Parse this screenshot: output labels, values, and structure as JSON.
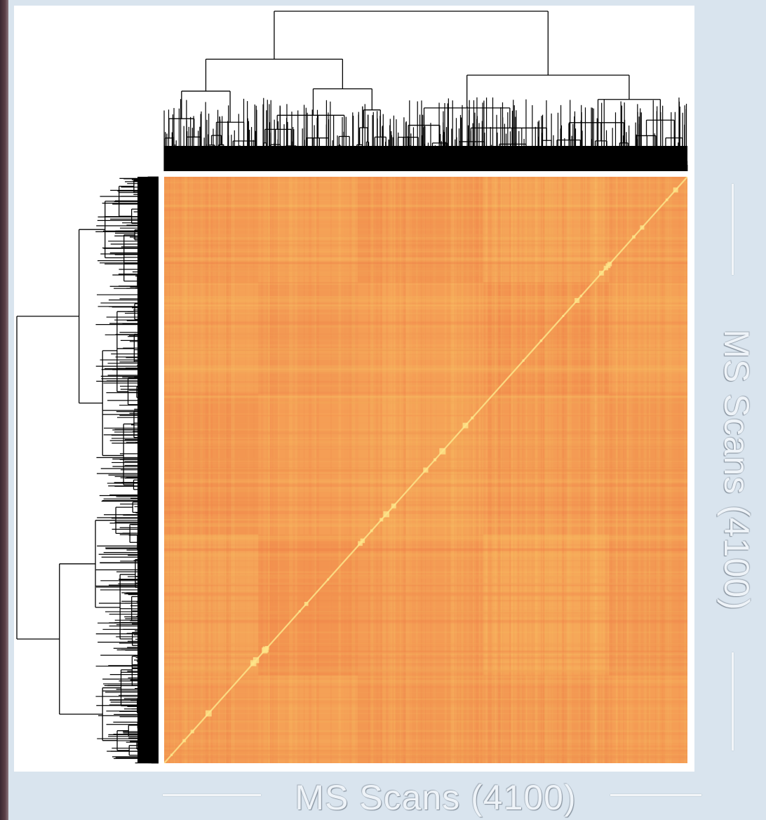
{
  "chart_data": {
    "type": "heatmap",
    "title": "",
    "xlabel": "MS Scans (4100)",
    "ylabel": "MS Scans (4100)",
    "n_rows": 4100,
    "n_cols": 4100,
    "row_dendrogram": true,
    "col_dendrogram": true,
    "colormap": [
      "#f0743f",
      "#f49a52",
      "#f8c45e",
      "#fde080"
    ],
    "diagonal": "high similarity along main diagonal"
  },
  "colors": {
    "background": "#d9e4ee",
    "panel": "#ffffff",
    "heat_base": "#f49a52",
    "heat_dark": "#ef7444",
    "heat_light": "#fad06a",
    "dendrogram": "#000000"
  }
}
